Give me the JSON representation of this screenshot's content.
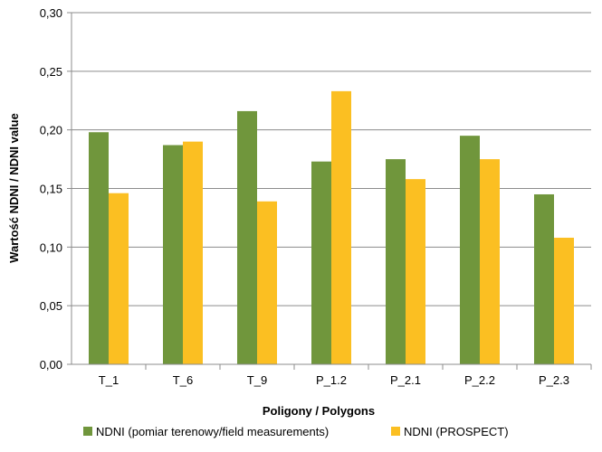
{
  "chart_data": {
    "type": "bar",
    "categories": [
      "T_1",
      "T_6",
      "T_9",
      "P_1.2",
      "P_2.1",
      "P_2.2",
      "P_2.3"
    ],
    "series": [
      {
        "name": "NDNI  (pomiar terenowy/field measurements)",
        "color": "#70963c",
        "values": [
          0.198,
          0.187,
          0.216,
          0.173,
          0.175,
          0.195,
          0.145
        ]
      },
      {
        "name": "NDNI  (PROSPECT)",
        "color": "#fbbf22",
        "values": [
          0.146,
          0.19,
          0.139,
          0.233,
          0.158,
          0.175,
          0.108
        ]
      }
    ],
    "xlabel": "Poligony / Polygons",
    "ylabel": "Wartość NDNI / NDNI value",
    "ylim": [
      0,
      0.3
    ],
    "yticks": [
      "0,00",
      "0,05",
      "0,10",
      "0,15",
      "0,20",
      "0,25",
      "0,30"
    ],
    "grid": true,
    "legend_position": "bottom"
  }
}
